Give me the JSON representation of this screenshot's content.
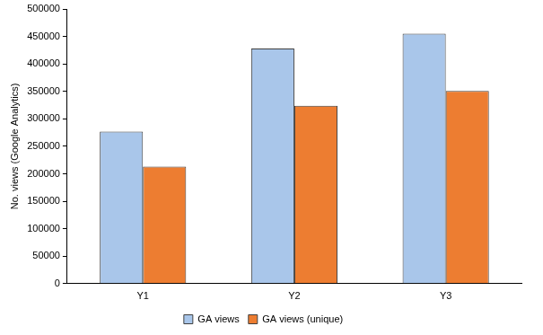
{
  "chart_data": {
    "type": "bar",
    "y_label": "No. views (Google Analytics)",
    "categories": [
      "Y1",
      "Y2",
      "Y3"
    ],
    "series": [
      {
        "name": "GA views",
        "color": "#a9c6ea",
        "values": [
          277000,
          428000,
          455000
        ]
      },
      {
        "name": "GA views (unique)",
        "color": "#ed7d31",
        "values": [
          213000,
          324000,
          351000
        ]
      }
    ],
    "ylim": [
      0,
      500000
    ],
    "yticks": [
      0,
      50000,
      100000,
      150000,
      200000,
      250000,
      300000,
      350000,
      400000,
      450000,
      500000
    ],
    "grid": false,
    "legend": "bottom"
  }
}
